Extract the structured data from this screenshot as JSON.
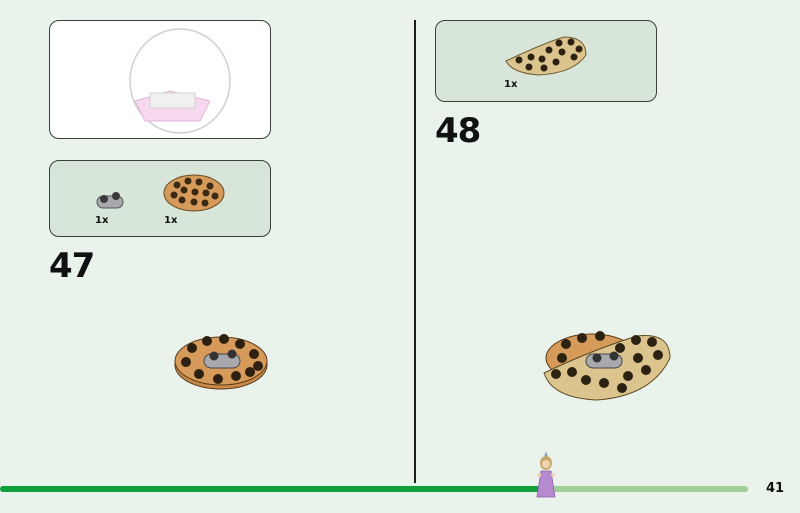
{
  "left_page": {
    "previous_result_box": {
      "icon": "dome-assembly-image"
    },
    "parts_box": {
      "parts": [
        {
          "name": "1x2 light gray plate",
          "qty": "1x",
          "color": "#a8a9ad"
        },
        {
          "name": "round 4x4 plate",
          "qty": "1x",
          "color": "#d69a5a"
        }
      ]
    },
    "step_number": "47"
  },
  "right_page": {
    "parts_box": {
      "parts": [
        {
          "name": "half round tan plate",
          "qty": "1x",
          "color": "#dcc48e"
        }
      ]
    },
    "step_number": "48"
  },
  "footer": {
    "progress_percent": 73,
    "progress_color": "#0fa03c",
    "track_color": "#a1cf97",
    "marker_icon": "minifigure-princess-icon",
    "page_number": "41"
  }
}
